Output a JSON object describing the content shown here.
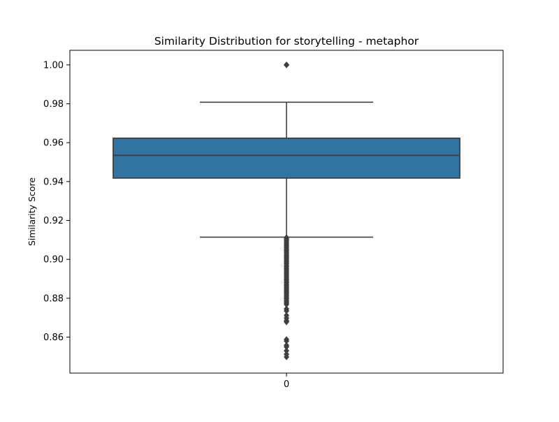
{
  "chart_data": {
    "type": "box",
    "title": "Similarity Distribution for storytelling - metaphor",
    "xlabel": "",
    "ylabel": "Similarity Score",
    "categories": [
      "0"
    ],
    "ylim": [
      0.8415,
      1.0075
    ],
    "yticks": [
      "0.86",
      "0.88",
      "0.90",
      "0.92",
      "0.94",
      "0.96",
      "0.98",
      "1.00"
    ],
    "grid": false,
    "box": {
      "q1": 0.9418,
      "median": 0.9535,
      "q3": 0.9623,
      "whisker_low": 0.9114,
      "whisker_high": 0.9808,
      "outliers": [
        1.0,
        1.0,
        1.0,
        0.9112,
        0.9105,
        0.9098,
        0.909,
        0.9082,
        0.9075,
        0.9068,
        0.906,
        0.9052,
        0.9045,
        0.9038,
        0.903,
        0.9022,
        0.9015,
        0.9008,
        0.9,
        0.8992,
        0.8985,
        0.8978,
        0.897,
        0.8962,
        0.8955,
        0.8948,
        0.894,
        0.8932,
        0.8925,
        0.8918,
        0.891,
        0.8902,
        0.8895,
        0.8888,
        0.888,
        0.8872,
        0.8865,
        0.8858,
        0.885,
        0.8842,
        0.8835,
        0.8828,
        0.882,
        0.8812,
        0.8805,
        0.8798,
        0.879,
        0.8782,
        0.8775,
        0.8768,
        0.8745,
        0.8735,
        0.8712,
        0.8698,
        0.8685,
        0.8678,
        0.8588,
        0.858,
        0.8558,
        0.855,
        0.853,
        0.8512,
        0.8498
      ]
    },
    "colors": {
      "box_fill": "#3274a1",
      "line": "#3f3f3f",
      "axis": "#000000"
    }
  }
}
